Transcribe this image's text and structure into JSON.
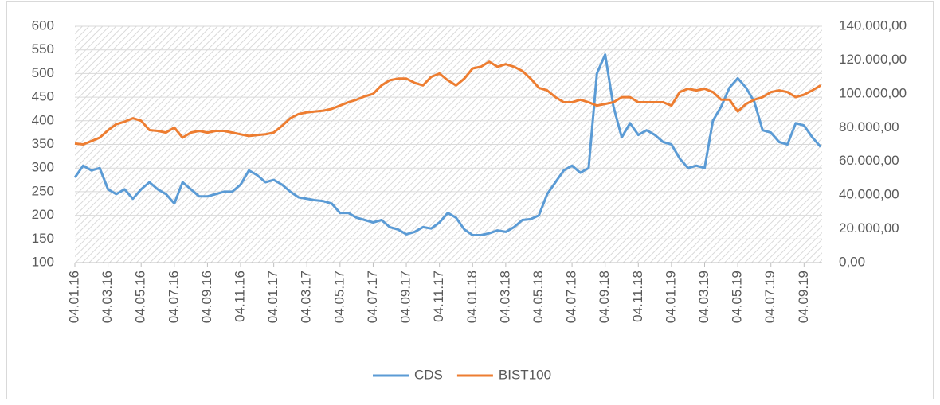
{
  "chart_data": {
    "type": "line",
    "legend": "bottom",
    "grid": true,
    "categories": [
      "04.01.16",
      null,
      null,
      null,
      "04.03.16",
      null,
      null,
      null,
      "04.05.16",
      null,
      null,
      null,
      "04.07.16",
      null,
      null,
      null,
      "04.09.16",
      null,
      null,
      null,
      "04.11.16",
      null,
      null,
      null,
      "04.01.17",
      null,
      null,
      null,
      "04.03.17",
      null,
      null,
      null,
      "04.05.17",
      null,
      null,
      null,
      "04.07.17",
      null,
      null,
      null,
      "04.09.17",
      null,
      null,
      null,
      "04.11.17",
      null,
      null,
      null,
      "04.01.18",
      null,
      null,
      null,
      "04.03.18",
      null,
      null,
      null,
      "04.05.18",
      null,
      null,
      null,
      "04.07.18",
      null,
      null,
      null,
      "04.09.18",
      null,
      null,
      null,
      "04.11.18",
      null,
      null,
      null,
      "04.01.19",
      null,
      null,
      null,
      "04.03.19",
      null,
      null,
      null,
      "04.05.19",
      null,
      null,
      null,
      "04.07.19",
      null,
      null,
      null,
      "04.09.19",
      null,
      null
    ],
    "series": [
      {
        "name": "CDS",
        "color": "#5b9bd5",
        "values": [
          280,
          305,
          295,
          300,
          255,
          245,
          255,
          235,
          255,
          270,
          255,
          245,
          225,
          270,
          255,
          240,
          240,
          245,
          250,
          250,
          265,
          295,
          285,
          270,
          275,
          265,
          250,
          238,
          235,
          232,
          230,
          225,
          205,
          205,
          195,
          190,
          185,
          190,
          175,
          170,
          160,
          165,
          175,
          172,
          185,
          205,
          195,
          170,
          158,
          158,
          162,
          168,
          165,
          175,
          190,
          192,
          200,
          245,
          270,
          295,
          305,
          290,
          300,
          500,
          540,
          430,
          365,
          395,
          370,
          380,
          370,
          355,
          350,
          320,
          300,
          305,
          300,
          400,
          430,
          470,
          490,
          470,
          440,
          380,
          375,
          355,
          350,
          395,
          390,
          365,
          345
        ]
      },
      {
        "name": "BIST100",
        "color": "#ed7d31",
        "axis": "y2",
        "values": [
          70500,
          70000,
          72000,
          74000,
          78400,
          82000,
          83500,
          85500,
          84000,
          78500,
          78000,
          77000,
          80000,
          74000,
          77000,
          78000,
          77000,
          78000,
          78000,
          77000,
          76000,
          75000,
          75500,
          76000,
          77000,
          81000,
          85500,
          88000,
          89000,
          89500,
          90000,
          91000,
          93000,
          95000,
          96500,
          98500,
          100000,
          105000,
          108000,
          109000,
          109000,
          106500,
          105000,
          110000,
          112000,
          108000,
          105000,
          109000,
          115000,
          116000,
          119000,
          116000,
          117500,
          116000,
          113500,
          109000,
          103500,
          102000,
          98000,
          95000,
          95000,
          96500,
          95000,
          93000,
          94000,
          95000,
          98000,
          98000,
          95000,
          95000,
          95000,
          95000,
          93000,
          101000,
          103000,
          102000,
          103000,
          101000,
          96500,
          96500,
          89500,
          94000,
          96500,
          98000,
          101000,
          102000,
          101000,
          98000,
          99500,
          102000,
          105000
        ]
      }
    ],
    "ylim": [
      100,
      600
    ],
    "yticks": [
      100,
      150,
      200,
      250,
      300,
      350,
      400,
      450,
      500,
      550,
      600
    ],
    "y2lim": [
      0,
      140000
    ],
    "y2ticks": [
      {
        "value": 0,
        "label": "0,00"
      },
      {
        "value": 20000,
        "label": "20.000,00"
      },
      {
        "value": 40000,
        "label": "40.000,00"
      },
      {
        "value": 60000,
        "label": "60.000,00"
      },
      {
        "value": 80000,
        "label": "80.000,00"
      },
      {
        "value": 100000,
        "label": "100.000,00"
      },
      {
        "value": 120000,
        "label": "120.000,00"
      },
      {
        "value": 140000,
        "label": "140.000,00"
      }
    ]
  }
}
